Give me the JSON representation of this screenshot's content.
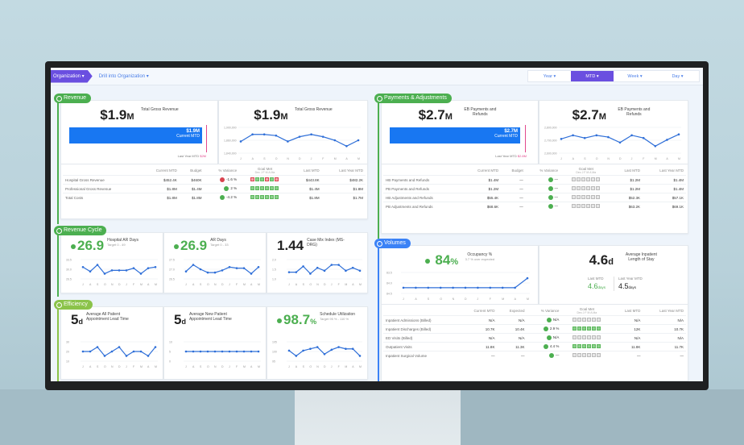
{
  "topbar": {
    "breadcrumb_org": "Organization ▾",
    "breadcrumb_drill": "Drill into Organization ▾",
    "period_tabs": [
      {
        "label": "Year ▾",
        "active": false
      },
      {
        "label": "MTD ▾",
        "active": true
      },
      {
        "label": "Week ▾",
        "active": false
      },
      {
        "label": "Day ▾",
        "active": false
      }
    ]
  },
  "colors": {
    "accent_purple": "#6a4fe0",
    "bar_blue": "#1877f2",
    "good_green": "#4caf50",
    "bad_red": "#d9434f",
    "target_pink": "#e24a8d"
  },
  "months": [
    "J",
    "A",
    "S",
    "O",
    "N",
    "D",
    "J",
    "F",
    "M",
    "A",
    "M"
  ],
  "revenue": {
    "label": "Revenue",
    "kpi1": {
      "value": "$1.9",
      "unit": "M",
      "label": "Total Gross Revenue",
      "bar_value": "$1.9M",
      "bar_sub": "Current MTD",
      "last_year": "Last Year MTD",
      "last_year_value": "$2M"
    },
    "kpi2": {
      "value": "$1.9",
      "unit": "M",
      "label": "Total Gross Revenue",
      "y_ticks": [
        "1,900,000",
        "1,860,000",
        "1,840,000"
      ],
      "points": [
        1847,
        1853,
        1853,
        1852,
        1847,
        1851,
        1853,
        1851,
        1848,
        1843,
        1848
      ]
    },
    "table": {
      "headers": [
        "",
        "Current MTD",
        "Budget",
        "% Variance",
        "Goal Met",
        "Last MTD",
        "Last Year MTD"
      ],
      "goal_sub": "Dec  J  F  M  A  Ma",
      "rows": [
        {
          "name": "Hospital Gross Revenue",
          "current": "$452.4K",
          "budget": "$460K",
          "variance": "-1.6 %",
          "status": "bad",
          "goal": [
            "bad",
            "ok",
            "ok",
            "bad",
            "ok",
            "bad"
          ],
          "last": "$443.8K",
          "last_year": "$482.2K"
        },
        {
          "name": "Professional Gross Revenue",
          "current": "$1.8M",
          "budget": "$1.4M",
          "variance": "2 %",
          "status": "ok",
          "goal": [
            "ok",
            "ok",
            "ok",
            "ok",
            "ok",
            "ok"
          ],
          "last": "$1.4M",
          "last_year": "$1.8M"
        },
        {
          "name": "Total Costs",
          "current": "$1.8M",
          "budget": "$1.8M",
          "variance": "-4.2 %",
          "status": "ok",
          "goal": [
            "ok",
            "ok",
            "ok",
            "ok",
            "ok",
            "ok"
          ],
          "last": "$1.8M",
          "last_year": "$1.7M"
        }
      ]
    }
  },
  "payments": {
    "label": "Payments & Adjustments",
    "kpi1": {
      "value": "$2.7",
      "unit": "M",
      "label": "EB Payments and Refunds",
      "bar_value": "$2.7M",
      "bar_sub": "Current MTD",
      "last_year": "Last Year MTD",
      "last_year_value": "$2.8M"
    },
    "kpi2": {
      "value": "$2.7",
      "unit": "M",
      "label": "EB Payments and Refunds",
      "y_ticks": [
        "2,800,000",
        "2,700,000",
        "2,600,000"
      ],
      "points": [
        2720,
        2740,
        2725,
        2740,
        2730,
        2700,
        2740,
        2725,
        2680,
        2715,
        2745
      ]
    },
    "table": {
      "headers": [
        "",
        "Current MTD",
        "Budget",
        "% Variance",
        "Goal Met",
        "Last MTD",
        "Last Year MTD"
      ],
      "goal_sub": "Dec  J  F  M  A  Ma",
      "rows": [
        {
          "name": "HB Payments and Refunds",
          "current": "$1.4M",
          "budget": "—",
          "variance": "—",
          "status": "ok",
          "goal": [
            "n",
            "n",
            "n",
            "n",
            "n",
            "n"
          ],
          "last": "$1.2M",
          "last_year": "$1.4M"
        },
        {
          "name": "PB Payments and Refunds",
          "current": "$1.2M",
          "budget": "—",
          "variance": "—",
          "status": "ok",
          "goal": [
            "n",
            "n",
            "n",
            "n",
            "n",
            "n"
          ],
          "last": "$1.2M",
          "last_year": "$1.4M"
        },
        {
          "name": "HB Adjustments and Refunds",
          "current": "$55.4K",
          "budget": "—",
          "variance": "—",
          "status": "ok",
          "goal": [
            "n",
            "n",
            "n",
            "n",
            "n",
            "n"
          ],
          "last": "$52.3K",
          "last_year": "$57.1K"
        },
        {
          "name": "PB Adjustments and Refunds",
          "current": "$68.6K",
          "budget": "—",
          "variance": "—",
          "status": "ok",
          "goal": [
            "n",
            "n",
            "n",
            "n",
            "n",
            "n"
          ],
          "last": "$63.2K",
          "last_year": "$69.1K"
        }
      ]
    }
  },
  "revenue_cycle": {
    "label": "Revenue Cycle",
    "cards": [
      {
        "value": "26.9",
        "good": true,
        "label": "Hospital AR Days",
        "sub": "Target 0 - 49",
        "y_ticks": [
          "33.5",
          "30.0",
          "26.5"
        ],
        "points": [
          30,
          28,
          31,
          27,
          28.5,
          28.5,
          28.5,
          29.5,
          27,
          29.5,
          30
        ]
      },
      {
        "value": "26.9",
        "good": true,
        "label": "AR Days",
        "sub": "Target 0 - 33",
        "y_ticks": [
          "27.5",
          "27.0",
          "26.5"
        ],
        "points": [
          26.8,
          27.4,
          27,
          26.7,
          26.7,
          26.9,
          27.2,
          27.1,
          27.1,
          26.6,
          27.2
        ]
      },
      {
        "value": "1.44",
        "good": false,
        "label": "Case Mix Index (MS-DRG)",
        "sub": "",
        "y_ticks": [
          "2.0",
          "1.5",
          "1.0"
        ],
        "points": [
          1.4,
          1.4,
          1.6,
          1.35,
          1.55,
          1.45,
          1.65,
          1.65,
          1.45,
          1.55,
          1.45
        ]
      }
    ]
  },
  "efficiency": {
    "label": "Efficiency",
    "cards": [
      {
        "value": "5",
        "unit": "d",
        "good": false,
        "label": "Average All Patient Appointment Lead Time",
        "sub": "",
        "y_ticks": [
          "30",
          "20",
          "10"
        ],
        "points": [
          20,
          20,
          30,
          10,
          20,
          30,
          10,
          20,
          20,
          10,
          30
        ]
      },
      {
        "value": "5",
        "unit": "d",
        "good": false,
        "label": "Average New Patient Appointment Lead Time",
        "sub": "",
        "y_ticks": [
          "10",
          "5",
          "0"
        ],
        "points": [
          5,
          5,
          5,
          5,
          5,
          5,
          5,
          5,
          5,
          5,
          5
        ]
      },
      {
        "value": "98.7",
        "unit": "%",
        "good": true,
        "label": "Schedule Utilization",
        "sub": "Target 95 % - 110 %",
        "y_ticks": [
          "105",
          "100",
          "95"
        ],
        "points": [
          100,
          97,
          100,
          101,
          102,
          98,
          100.5,
          102,
          101,
          101,
          97
        ]
      }
    ]
  },
  "volumes": {
    "label": "Volumes",
    "occupancy": {
      "value": "84",
      "unit": "%",
      "label": "Occupancy %",
      "sub": "3.7 % over expected",
      "y_ticks": [
        "83.5",
        "84.0",
        "84.5"
      ],
      "points": [
        84,
        84,
        84,
        84,
        84,
        84,
        84,
        84,
        84,
        84,
        86
      ]
    },
    "los": {
      "value": "4.6",
      "unit": "d",
      "label": "Average Inpatient Length of Stay",
      "last_mtd_label": "Last MTD",
      "last_mtd_value": "4.6",
      "last_mtd_unit": "days",
      "last_year_label": "Last Year MTD",
      "last_year_value": "4.5",
      "last_year_unit": "days"
    },
    "table": {
      "headers": [
        "",
        "Current MTD",
        "Expected",
        "% Variance",
        "Goal Met",
        "Last MTD",
        "Last Year MTD"
      ],
      "goal_sub": "Dec  J  F  M  A  Ma",
      "rows": [
        {
          "name": "Inpatient Admissions (Billed)",
          "current": "N/A",
          "budget": "N/A",
          "variance": "N/A",
          "status": "ok",
          "goal": [
            "n",
            "n",
            "n",
            "n",
            "n",
            "n"
          ],
          "last": "N/A",
          "last_year": "N/A"
        },
        {
          "name": "Inpatient Discharges (Billed)",
          "current": "10.7K",
          "budget": "10.4K",
          "variance": "2.9 %",
          "status": "ok",
          "goal": [
            "ok",
            "ok",
            "ok",
            "ok",
            "ok",
            "ok"
          ],
          "last": "12K",
          "last_year": "10.7K"
        },
        {
          "name": "ED Visits (Billed)",
          "current": "N/A",
          "budget": "N/A",
          "variance": "N/A",
          "status": "ok",
          "goal": [
            "n",
            "n",
            "n",
            "n",
            "n",
            "n"
          ],
          "last": "N/A",
          "last_year": "N/A"
        },
        {
          "name": "Outpatient Visits",
          "current": "11.8K",
          "budget": "11.3K",
          "variance": "4.4 %",
          "status": "ok",
          "goal": [
            "ok",
            "ok",
            "ok",
            "ok",
            "ok",
            "ok"
          ],
          "last": "11.8K",
          "last_year": "11.7K"
        },
        {
          "name": "Inpatient Surgical Volume",
          "current": "—",
          "budget": "—",
          "variance": "—",
          "status": "ok",
          "goal": [
            "n",
            "n",
            "n",
            "n",
            "n",
            "n"
          ],
          "last": "—",
          "last_year": "—"
        }
      ]
    }
  }
}
